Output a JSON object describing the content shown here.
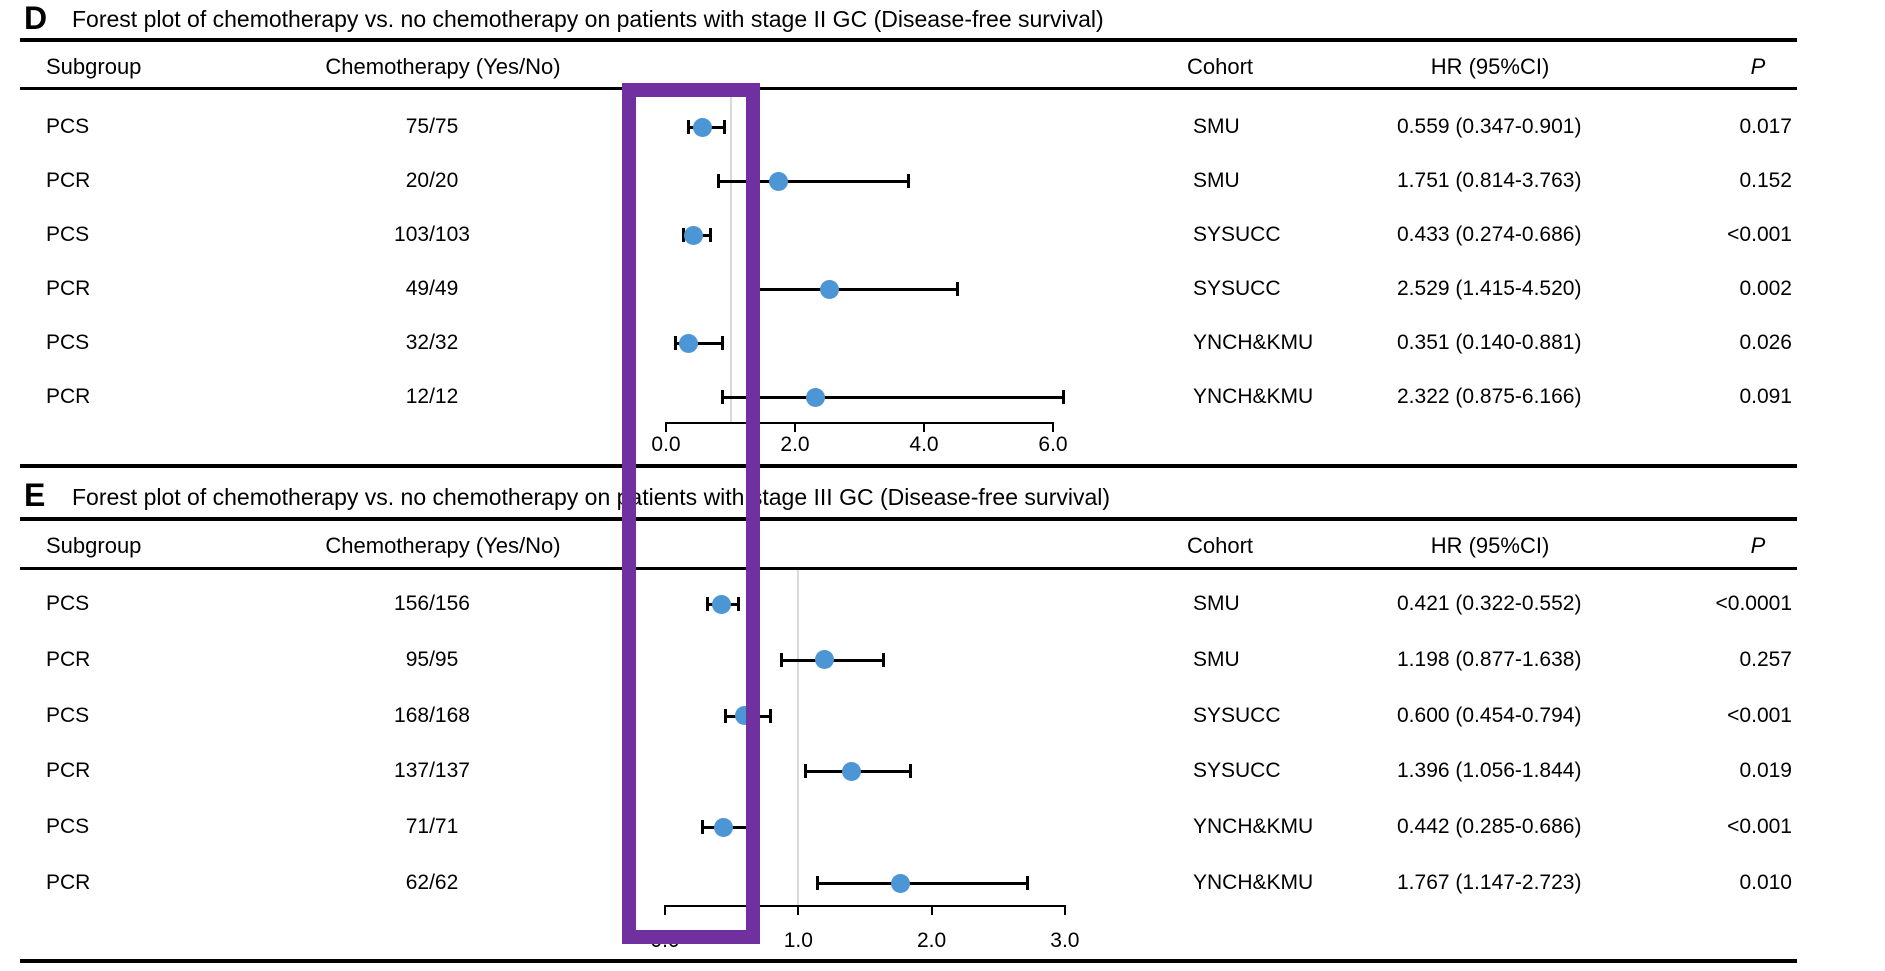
{
  "figure_type": "forest-plot-figure",
  "colors": {
    "point": "#4D96D5",
    "reference_line": "#D9D9D9",
    "rule": "#000000",
    "highlight": "#7030A0"
  },
  "annotation": {
    "shape": "rectangle",
    "color": "#7030A0",
    "purpose": "highlight of hazard-ratio region spanning both panels"
  },
  "chart_data": [
    {
      "type": "forest",
      "panel_label": "D",
      "title": "Forest plot of chemotherapy vs. no chemotherapy on patients with stage II GC (Disease-free survival)",
      "columns": {
        "subgroup": "Subgroup",
        "chemotherapy": "Chemotherapy (Yes/No)",
        "cohort": "Cohort",
        "hr": "HR (95%CI)",
        "p": "P"
      },
      "axis": {
        "min": 0,
        "max": 6,
        "ticks": [
          0.0,
          2.0,
          4.0,
          6.0
        ],
        "tick_labels": [
          "0.0",
          "2.0",
          "4.0",
          "6.0"
        ],
        "reference_line": 1.0
      },
      "rows": [
        {
          "subgroup": "PCS",
          "chemotherapy": "75/75",
          "cohort": "SMU",
          "hr": 0.559,
          "ci_low": 0.347,
          "ci_high": 0.901,
          "hr_text": "0.559 (0.347-0.901)",
          "p": "0.017"
        },
        {
          "subgroup": "PCR",
          "chemotherapy": "20/20",
          "cohort": "SMU",
          "hr": 1.751,
          "ci_low": 0.814,
          "ci_high": 3.763,
          "hr_text": "1.751 (0.814-3.763)",
          "p": "0.152"
        },
        {
          "subgroup": "PCS",
          "chemotherapy": "103/103",
          "cohort": "SYSUCC",
          "hr": 0.433,
          "ci_low": 0.274,
          "ci_high": 0.686,
          "hr_text": "0.433 (0.274-0.686)",
          "p": "<0.001"
        },
        {
          "subgroup": "PCR",
          "chemotherapy": "49/49",
          "cohort": "SYSUCC",
          "hr": 2.529,
          "ci_low": 1.415,
          "ci_high": 4.52,
          "hr_text": "2.529 (1.415-4.520)",
          "p": "0.002"
        },
        {
          "subgroup": "PCS",
          "chemotherapy": "32/32",
          "cohort": "YNCH&KMU",
          "hr": 0.351,
          "ci_low": 0.14,
          "ci_high": 0.881,
          "hr_text": "0.351 (0.140-0.881)",
          "p": "0.026"
        },
        {
          "subgroup": "PCR",
          "chemotherapy": "12/12",
          "cohort": "YNCH&KMU",
          "hr": 2.322,
          "ci_low": 0.875,
          "ci_high": 6.166,
          "hr_text": "2.322 (0.875-6.166)",
          "p": "0.091"
        }
      ]
    },
    {
      "type": "forest",
      "panel_label": "E",
      "title": "Forest plot of chemotherapy vs. no chemotherapy on patients with stage III GC (Disease-free survival)",
      "columns": {
        "subgroup": "Subgroup",
        "chemotherapy": "Chemotherapy (Yes/No)",
        "cohort": "Cohort",
        "hr": "HR (95%CI)",
        "p": "P"
      },
      "axis": {
        "min": 0,
        "max": 3,
        "ticks": [
          0.0,
          1.0,
          2.0,
          3.0
        ],
        "tick_labels": [
          "0.0",
          "1.0",
          "2.0",
          "3.0"
        ],
        "reference_line": 1.0
      },
      "rows": [
        {
          "subgroup": "PCS",
          "chemotherapy": "156/156",
          "cohort": "SMU",
          "hr": 0.421,
          "ci_low": 0.322,
          "ci_high": 0.552,
          "hr_text": "0.421 (0.322-0.552)",
          "p": "<0.0001"
        },
        {
          "subgroup": "PCR",
          "chemotherapy": "95/95",
          "cohort": "SMU",
          "hr": 1.198,
          "ci_low": 0.877,
          "ci_high": 1.638,
          "hr_text": "1.198 (0.877-1.638)",
          "p": "0.257"
        },
        {
          "subgroup": "PCS",
          "chemotherapy": "168/168",
          "cohort": "SYSUCC",
          "hr": 0.6,
          "ci_low": 0.454,
          "ci_high": 0.794,
          "hr_text": "0.600 (0.454-0.794)",
          "p": "<0.001"
        },
        {
          "subgroup": "PCR",
          "chemotherapy": "137/137",
          "cohort": "SYSUCC",
          "hr": 1.396,
          "ci_low": 1.056,
          "ci_high": 1.844,
          "hr_text": "1.396 (1.056-1.844)",
          "p": "0.019"
        },
        {
          "subgroup": "PCS",
          "chemotherapy": "71/71",
          "cohort": "YNCH&KMU",
          "hr": 0.442,
          "ci_low": 0.285,
          "ci_high": 0.686,
          "hr_text": "0.442 (0.285-0.686)",
          "p": "<0.001"
        },
        {
          "subgroup": "PCR",
          "chemotherapy": "62/62",
          "cohort": "YNCH&KMU",
          "hr": 1.767,
          "ci_low": 1.147,
          "ci_high": 2.723,
          "hr_text": "1.767 (1.147-2.723)",
          "p": "0.010"
        }
      ]
    }
  ]
}
